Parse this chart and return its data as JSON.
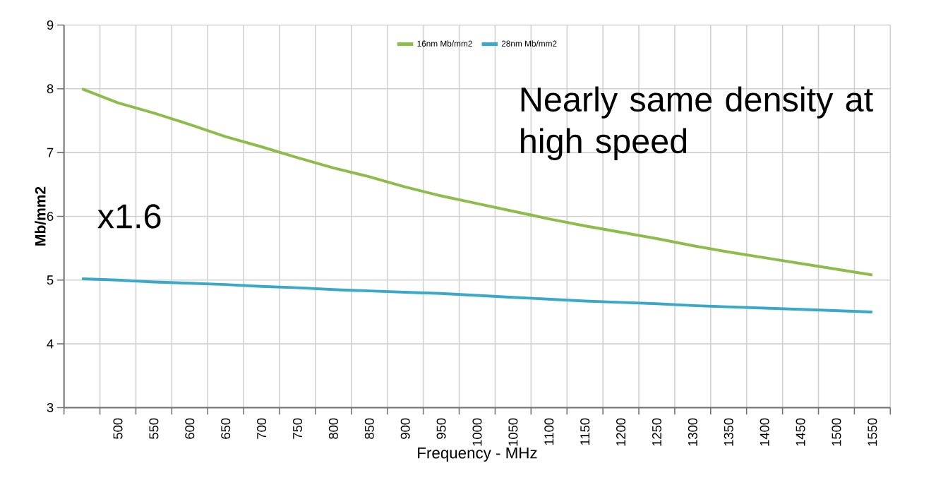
{
  "chart_data": {
    "type": "line",
    "xlabel": "Frequency - MHz",
    "ylabel": "Mb/mm2",
    "categories": [
      null,
      "500",
      "550",
      "600",
      "650",
      "700",
      "750",
      "800",
      "850",
      "900",
      "950",
      "1000",
      "1050",
      "1100",
      "1150",
      "1200",
      "1250",
      "1300",
      "1350",
      "1400",
      "1450",
      "1500",
      "1550"
    ],
    "series": [
      {
        "name": "16nm Mb/mm2",
        "color": "#8cbd4a",
        "values": [
          8.0,
          7.78,
          7.62,
          7.44,
          7.25,
          7.09,
          6.92,
          6.76,
          6.62,
          6.46,
          6.32,
          6.2,
          6.08,
          5.96,
          5.85,
          5.75,
          5.65,
          5.54,
          5.44,
          5.35,
          5.26,
          5.17,
          5.08
        ]
      },
      {
        "name": "28nm Mb/mm2",
        "color": "#3aa8c8",
        "values": [
          5.02,
          5.0,
          4.97,
          4.95,
          4.93,
          4.9,
          4.88,
          4.85,
          4.83,
          4.81,
          4.79,
          4.76,
          4.73,
          4.7,
          4.67,
          4.65,
          4.63,
          4.6,
          4.58,
          4.56,
          4.54,
          4.52,
          4.5
        ]
      }
    ],
    "ylim": [
      3,
      9
    ],
    "yticks": [
      3,
      4,
      5,
      6,
      7,
      8,
      9
    ],
    "grid": true,
    "legend": "top",
    "line_style": "solid",
    "annotations": [
      "x1.6",
      "Nearly same density at high speed"
    ]
  }
}
